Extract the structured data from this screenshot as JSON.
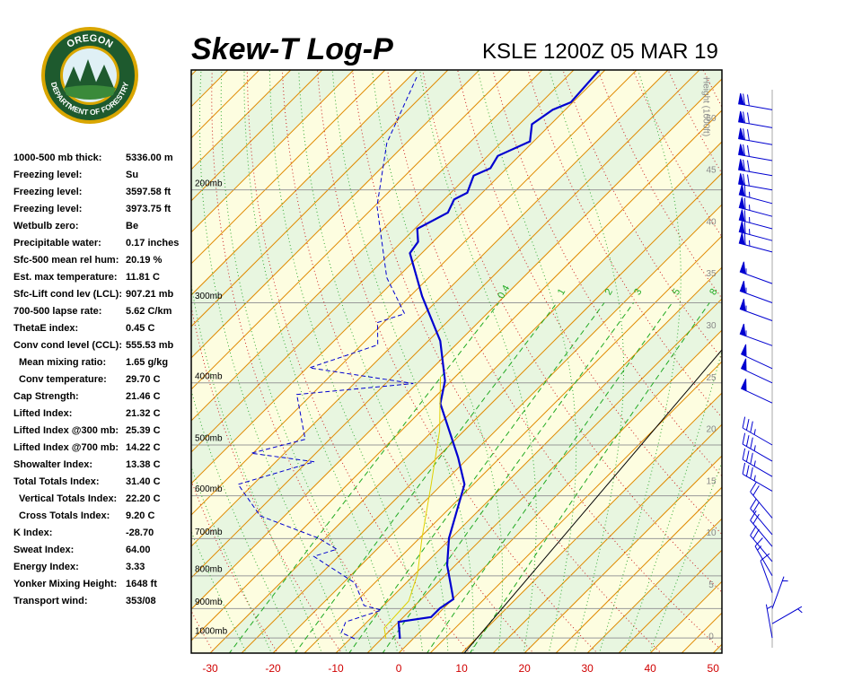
{
  "logo": {
    "top": "OREGON",
    "bottom": "DEPARTMENT OF FORESTRY"
  },
  "indices": [
    {
      "label": "1000-500 mb thick:",
      "value": "5336.00 m"
    },
    {
      "label": "Freezing level:",
      "value": "Su"
    },
    {
      "label": "Freezing level:",
      "value": "3597.58 ft"
    },
    {
      "label": "Freezing level:",
      "value": "3973.75 ft"
    },
    {
      "label": "Wetbulb zero:",
      "value": "Be"
    },
    {
      "label": "Precipitable water:",
      "value": "0.17 inches"
    },
    {
      "label": "Sfc-500 mean rel hum:",
      "value": "20.19 %"
    },
    {
      "label": "Est. max temperature:",
      "value": "11.81 C"
    },
    {
      "label": "Sfc-Lift cond lev (LCL):",
      "value": "907.21 mb"
    },
    {
      "label": "700-500 lapse rate:",
      "value": "5.62 C/km"
    },
    {
      "label": "ThetaE index:",
      "value": "0.45 C"
    },
    {
      "label": "Conv cond level (CCL):",
      "value": "555.53 mb"
    },
    {
      "label": "Mean mixing ratio:",
      "value": "1.65 g/kg"
    },
    {
      "label": "Conv temperature:",
      "value": "29.70 C"
    },
    {
      "label": "Cap Strength:",
      "value": "21.46 C"
    },
    {
      "label": "Lifted Index:",
      "value": "21.32 C"
    },
    {
      "label": "Lifted Index @300 mb:",
      "value": "25.39 C"
    },
    {
      "label": "Lifted Index @700 mb:",
      "value": "14.22 C"
    },
    {
      "label": "Showalter Index:",
      "value": "13.38 C"
    },
    {
      "label": "Total Totals Index:",
      "value": "31.40 C"
    },
    {
      "label": "Vertical Totals Index:",
      "value": "22.20 C"
    },
    {
      "label": "Cross Totals Index:",
      "value": "9.20 C"
    },
    {
      "label": "K Index:",
      "value": "-28.70"
    },
    {
      "label": "Sweat Index:",
      "value": "64.00"
    },
    {
      "label": "Energy Index:",
      "value": "3.33"
    },
    {
      "label": "Yonker Mixing Height:",
      "value": "1648 ft"
    },
    {
      "label": "Transport wind:",
      "value": "353/08"
    }
  ],
  "chart_data": {
    "type": "skew-t",
    "title": "Skew-T Log-P",
    "subtitle": "KSLE 1200Z 05 MAR 19",
    "xlim": [
      -33,
      51.4
    ],
    "xticks": [
      -30,
      -20,
      -10,
      0,
      10,
      20,
      30,
      40,
      50
    ],
    "ylim": [
      1056,
      130
    ],
    "log_y": true,
    "yticks": [
      {
        "value": 1000,
        "label": "1000mb"
      },
      {
        "value": 900,
        "label": "900mb"
      },
      {
        "value": 800,
        "label": "800mb"
      },
      {
        "value": 700,
        "label": "700mb"
      },
      {
        "value": 600,
        "label": "600mb"
      },
      {
        "value": 500,
        "label": "500mb"
      },
      {
        "value": 400,
        "label": "400mb"
      },
      {
        "value": 300,
        "label": "300mb"
      },
      {
        "value": 200,
        "label": "200mb"
      }
    ],
    "y2label": "Height (1000ft)",
    "y2lim": [
      -1.56,
      54.7
    ],
    "y2ticks": [
      0,
      5,
      10,
      15,
      20,
      25,
      30,
      35,
      40,
      45,
      50
    ],
    "series": [
      {
        "color": "#0000d0",
        "style": "solid",
        "pressure": [
          1003,
          944,
          928,
          899,
          870,
          770,
          699,
          576,
          523,
          431,
          397,
          344,
          293,
          251,
          241,
          230,
          217,
          207,
          202,
          190,
          185,
          177,
          168,
          158,
          150,
          146,
          130
        ],
        "temperature": [
          -2.1,
          -5.0,
          -0.6,
          -0.6,
          0.1,
          -6.3,
          -10.3,
          -16.4,
          -21.7,
          -33.1,
          -36.0,
          -43.1,
          -53.1,
          -61.9,
          -62.4,
          -64.6,
          -62.3,
          -63.4,
          -62.4,
          -64.1,
          -62.6,
          -63.4,
          -60.6,
          -63.0,
          -62.0,
          -60.3,
          -60.9
        ]
      },
      {
        "color": "#0000d0",
        "style": "dashed",
        "pressure": [
          1003,
          981,
          944,
          905,
          890,
          821,
          746,
          727,
          699,
          645,
          576,
          531,
          515,
          490,
          417,
          401,
          379,
          349,
          322,
          312,
          274,
          212,
          169,
          133
        ],
        "temperature": [
          -9.3,
          -12.4,
          -13.4,
          -9.6,
          -13.1,
          -18.1,
          -28.9,
          -26.4,
          -31.0,
          -43.9,
          -52.4,
          -43.9,
          -55.3,
          -48.9,
          -57.4,
          -40.6,
          -59.6,
          -52.4,
          -56.0,
          -53.1,
          -61.7,
          -74.6,
          -83.1,
          -88.9
        ]
      },
      {
        "color": "#e0d000",
        "style": "solid",
        "pressure": [
          1003,
          965,
          876,
          795,
          699,
          576,
          475,
          391
        ],
        "temperature": [
          -4.3,
          -6.3,
          -6.7,
          -9.6,
          -14.6,
          -21.7,
          -28.9,
          -37.4
        ]
      }
    ],
    "mixing_ratio_lines": {
      "color": "#22aa22",
      "values": [
        0.4,
        1,
        2,
        3,
        5,
        8
      ]
    },
    "wind_barbs": {
      "color": "#0000d0",
      "pressure": [
        150,
        160,
        170,
        180,
        190,
        200,
        210,
        220,
        230,
        240,
        250,
        280,
        300,
        320,
        350,
        380,
        400,
        430,
        500,
        530,
        560,
        590,
        650,
        690,
        720,
        760,
        800,
        850,
        900,
        950,
        1000
      ],
      "direction": [
        280,
        280,
        280,
        280,
        280,
        280,
        285,
        285,
        285,
        285,
        285,
        290,
        290,
        290,
        290,
        295,
        295,
        295,
        300,
        300,
        300,
        300,
        320,
        320,
        320,
        320,
        330,
        340,
        20,
        60,
        350
      ],
      "speed": [
        70,
        70,
        70,
        70,
        70,
        70,
        65,
        65,
        65,
        65,
        65,
        55,
        55,
        55,
        55,
        50,
        50,
        50,
        35,
        35,
        35,
        35,
        20,
        20,
        20,
        20,
        15,
        10,
        5,
        5,
        5
      ]
    }
  }
}
